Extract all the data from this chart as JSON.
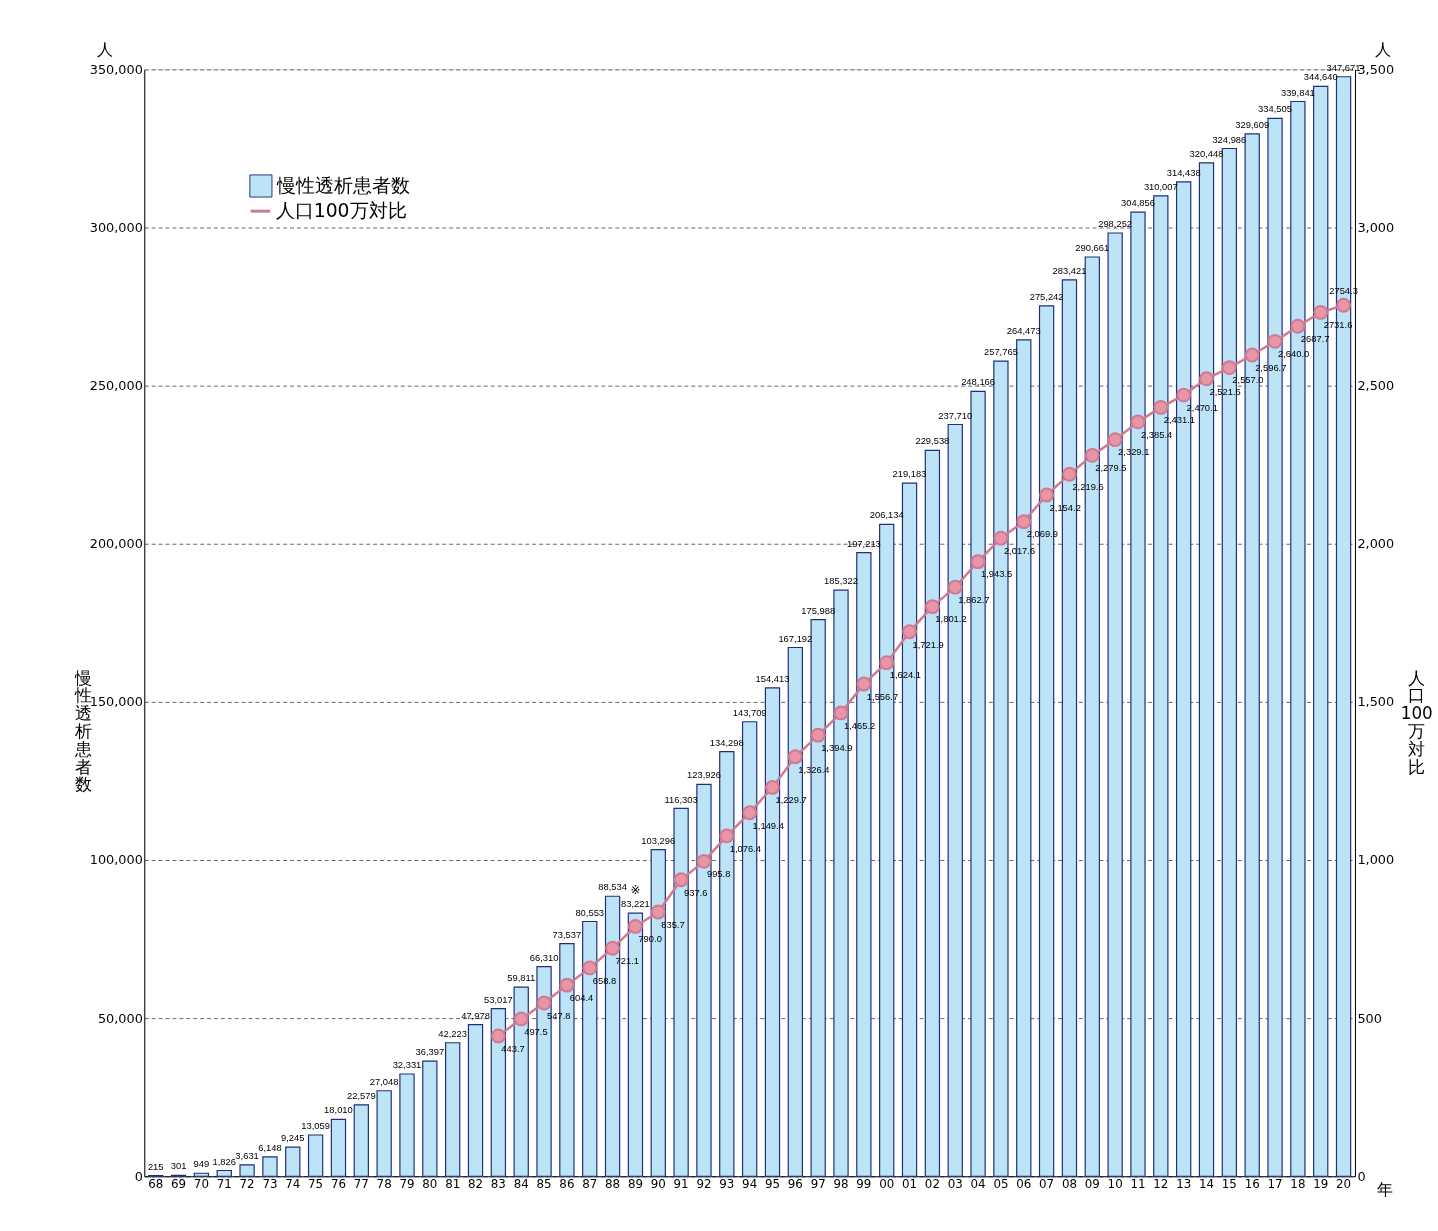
{
  "chart_data": {
    "type": "bar",
    "ylabel": "慢性透析患者数",
    "y2label": "人口100万対比",
    "categories": [
      "68",
      "69",
      "70",
      "71",
      "72",
      "73",
      "74",
      "75",
      "76",
      "77",
      "78",
      "79",
      "80",
      "81",
      "82",
      "83",
      "84",
      "85",
      "86",
      "87",
      "88",
      "89",
      "90",
      "91",
      "92",
      "93",
      "94",
      "95",
      "96",
      "97",
      "98",
      "99",
      "00",
      "01",
      "02",
      "03",
      "04",
      "05",
      "06",
      "07",
      "08",
      "09",
      "10",
      "11",
      "12",
      "13",
      "14",
      "15",
      "16",
      "17",
      "18",
      "19",
      "20"
    ],
    "series": [
      {
        "name": "慢性透析患者数",
        "color": "#bde3f7",
        "values": [
          215,
          301,
          949,
          1826,
          3631,
          6148,
          9245,
          13059,
          18010,
          22579,
          27048,
          32331,
          36397,
          42223,
          47978,
          53017,
          59811,
          66310,
          73537,
          80553,
          88534,
          83221,
          103296,
          116303,
          123926,
          134298,
          143709,
          154413,
          167192,
          175988,
          185322,
          197213,
          206134,
          219183,
          229538,
          237710,
          248166,
          257765,
          264473,
          275242,
          283421,
          290661,
          298252,
          304856,
          310007,
          314438,
          320448,
          324986,
          329609,
          334505,
          339841,
          344640,
          347671
        ],
        "value_labels": [
          "215",
          "301",
          "949",
          "1,826",
          "3,631",
          "6,148",
          "9,245",
          "13,059",
          "18,010",
          "22,579",
          "27,048",
          "32,331",
          "36,397",
          "42,223",
          "47,978",
          "53,017",
          "59,811",
          "66,310",
          "73,537",
          "80,553",
          "88,534",
          "83,221",
          "103,296",
          "116,303",
          "123,926",
          "134,298",
          "143,709",
          "154,413",
          "167,192",
          "175,988",
          "185,322",
          "197,213",
          "206,134",
          "219,183",
          "229,538",
          "237,710",
          "248,166",
          "257,765",
          "264,473",
          "275,242",
          "283,421",
          "290,661",
          "298,252",
          "304,856",
          "310,007",
          "314,438",
          "320,448",
          "324,986",
          "329,609",
          "334,505",
          "339,841",
          "344,640",
          "347,671"
        ]
      },
      {
        "name": "人口100万対比",
        "type": "line",
        "axis": "y2",
        "color": "#d07a90",
        "values": [
          null,
          null,
          null,
          null,
          null,
          null,
          null,
          null,
          null,
          null,
          null,
          null,
          null,
          null,
          null,
          443.7,
          497.5,
          547.8,
          604.4,
          658.8,
          721.1,
          790.0,
          835.7,
          937.6,
          995.8,
          1076.4,
          1149.4,
          1229.7,
          1326.4,
          1394.9,
          1465.2,
          1556.7,
          1624.1,
          1721.9,
          1801.2,
          1862.7,
          1943.5,
          2017.6,
          2069.9,
          2154.2,
          2219.6,
          2279.5,
          2329.1,
          2385.4,
          2431.1,
          2470.1,
          2521.6,
          2557.0,
          2596.7,
          2640.0,
          2687.7,
          2731.6,
          2754.3
        ],
        "value_labels": [
          null,
          null,
          null,
          null,
          null,
          null,
          null,
          null,
          null,
          null,
          null,
          null,
          null,
          null,
          null,
          "443.7",
          "497.5",
          "547.8",
          "604.4",
          "658.8",
          "721.1",
          "790.0",
          "835.7",
          "937.6",
          "995.8",
          "1,076.4",
          "1,149.4",
          "1,229.7",
          "1,326.4",
          "1,394.9",
          "1,465.2",
          "1,556.7",
          "1,624.1",
          "1,721.9",
          "1,801.2",
          "1,862.7",
          "1,943.5",
          "2,017.6",
          "2,069.9",
          "2,154.2",
          "2,219.6",
          "2,279.5",
          "2,329.1",
          "2,385.4",
          "2,431.1",
          "2,470.1",
          "2,521.6",
          "2,557.0",
          "2,596.7",
          "2,640.0",
          "2687.7",
          "2731.6",
          "2754.3"
        ]
      }
    ],
    "ylim": [
      0,
      350000
    ],
    "yticks": [
      0,
      {
        "value": 50000,
        "label": "50,000"
      },
      {
        "value": 100000,
        "label": "100,000"
      },
      {
        "value": 150000,
        "label": "150,000"
      },
      {
        "value": 200000,
        "label": "200,000"
      },
      {
        "value": 250000,
        "label": "250,000"
      },
      {
        "value": 300000,
        "label": "300,000"
      },
      {
        "value": 350000,
        "label": "350,000"
      }
    ],
    "y2lim": [
      0,
      3500
    ],
    "y2ticks": [
      0,
      500,
      {
        "value": 1000,
        "label": "1,000"
      },
      {
        "value": 1500,
        "label": "1,500"
      },
      {
        "value": 2000,
        "label": "2,000"
      },
      {
        "value": 2500,
        "label": "2,500"
      },
      {
        "value": 3000,
        "label": "3,000"
      },
      {
        "value": 3500,
        "label": "3,500"
      }
    ],
    "grid": "y",
    "legend": "top left",
    "marker": "circle",
    "line_style": "solid",
    "annotations": [
      "人",
      "人",
      "年",
      {
        "text": "※",
        "x": "89",
        "y": 83221
      }
    ]
  }
}
